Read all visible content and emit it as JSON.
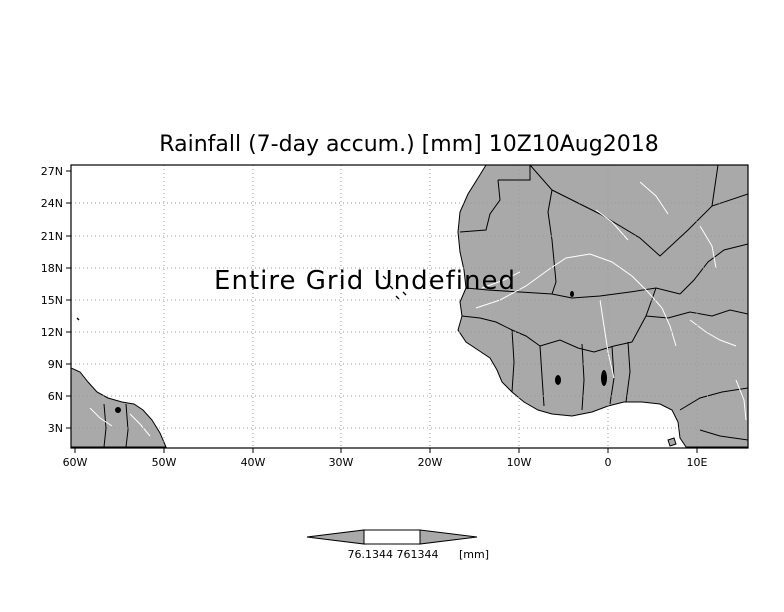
{
  "map": {
    "title": "Rainfall (7-day accum.) [mm] 10Z10Aug2018",
    "overlay_message": "Entire Grid Undefined",
    "lat_labels": [
      "27N",
      "24N",
      "21N",
      "18N",
      "15N",
      "12N",
      "9N",
      "6N",
      "3N"
    ],
    "lon_labels": [
      "60W",
      "50W",
      "40W",
      "30W",
      "20W",
      "10W",
      "0",
      "10E"
    ],
    "colors": {
      "land": "#a9a9a9",
      "ocean": "#ffffff",
      "rivers": "#ffffff",
      "borders": "#000000"
    }
  },
  "colorbar": {
    "value_label": "76.1344 761344",
    "unit_label": "[mm]"
  }
}
